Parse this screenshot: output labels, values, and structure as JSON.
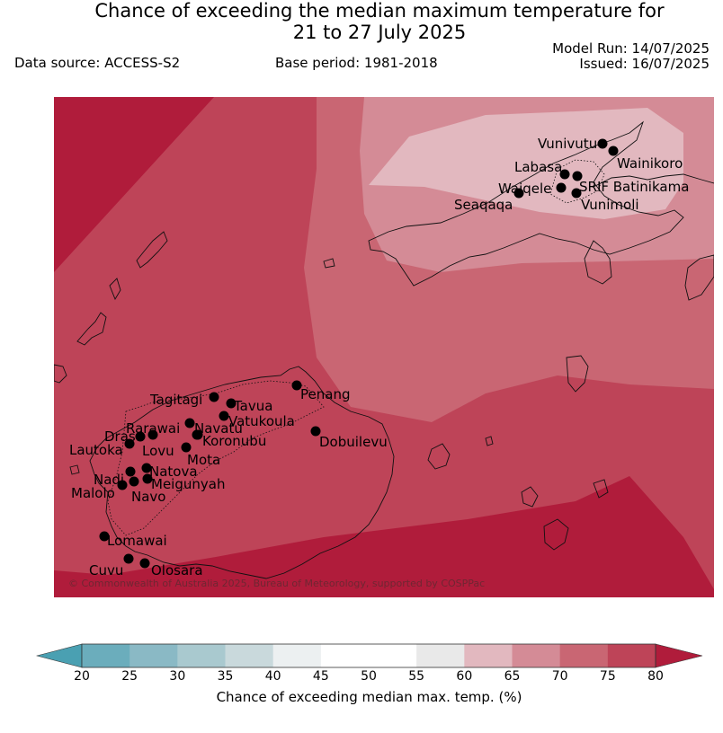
{
  "header": {
    "title_line1": "Chance of exceeding the median maximum temperature for",
    "title_line2": "21 to 27 July 2025",
    "data_source": "Data source: ACCESS-S2",
    "base_period": "Base period: 1981-2018",
    "model_run": "Model Run: 14/07/2025",
    "issued": "Issued: 16/07/2025"
  },
  "map": {
    "copyright": "© Commonwealth of Australia 2025, Bureau of Meteorology, supported by COSPPac",
    "towns": [
      {
        "name": "Vunivutu"
      },
      {
        "name": "Wainikoro"
      },
      {
        "name": "Labasa"
      },
      {
        "name": "SRIF Batinikama"
      },
      {
        "name": "Waiqele"
      },
      {
        "name": "Seaqaqa"
      },
      {
        "name": "Vunimoli"
      },
      {
        "name": "Penang"
      },
      {
        "name": "Tagitagi"
      },
      {
        "name": "Tavua"
      },
      {
        "name": "Vatukoula"
      },
      {
        "name": "Rarawai"
      },
      {
        "name": "Navatu"
      },
      {
        "name": "Drasa"
      },
      {
        "name": "Koronubu"
      },
      {
        "name": "Lautoka"
      },
      {
        "name": "Lovu"
      },
      {
        "name": "Mota"
      },
      {
        "name": "Dobuilevu"
      },
      {
        "name": "Natova"
      },
      {
        "name": "Nadi"
      },
      {
        "name": "Meigunyah"
      },
      {
        "name": "Malolo"
      },
      {
        "name": "Navo"
      },
      {
        "name": "Lomawai"
      },
      {
        "name": "Cuvu"
      },
      {
        "name": "Olosara"
      }
    ]
  },
  "legend": {
    "label": "Chance of exceeding median max. temp. (%)",
    "ticks": [
      "20",
      "25",
      "30",
      "35",
      "40",
      "45",
      "50",
      "55",
      "60",
      "65",
      "70",
      "75",
      "80"
    ],
    "colors": [
      "#6badbc",
      "#8ab9c5",
      "#a9c9cf",
      "#c9d9dc",
      "#ecf0f1",
      "#ffffff",
      "#ffffff",
      "#e9e9e9",
      "#e2b8bf",
      "#d48b96",
      "#c96673",
      "#be4458"
    ],
    "under_color": "#4aa0b2",
    "over_color": "#b01c3b"
  }
}
